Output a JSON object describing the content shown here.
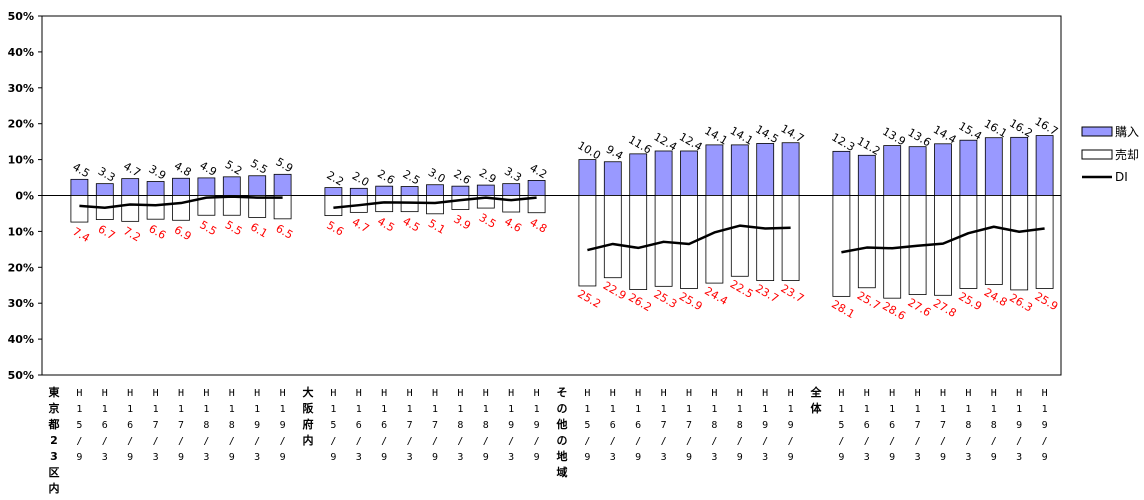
{
  "colors": {
    "buy": "#9999ff",
    "sell": "#ffffff",
    "di": "#000000",
    "sell_label": "#ff0000"
  },
  "legend": {
    "buy": "購入",
    "sell": "売却",
    "di": "DI"
  },
  "chart_data": {
    "type": "bar",
    "ylim": [
      -50,
      50
    ],
    "y_ticks": [
      {
        "value": 50,
        "label": "50%"
      },
      {
        "value": 40,
        "label": "40%"
      },
      {
        "value": 30,
        "label": "30%"
      },
      {
        "value": 20,
        "label": "20%"
      },
      {
        "value": 10,
        "label": "10%"
      },
      {
        "value": 0,
        "label": "0%"
      },
      {
        "value": -10,
        "label": "10%"
      },
      {
        "value": -20,
        "label": "20%"
      },
      {
        "value": -30,
        "label": "30%"
      },
      {
        "value": -40,
        "label": "40%"
      },
      {
        "value": -50,
        "label": "50%"
      }
    ],
    "groups": [
      {
        "name": "東京都23区内",
        "categories": [
          "H15/9",
          "H16/3",
          "H16/9",
          "H17/3",
          "H17/9",
          "H18/3",
          "H18/9",
          "H19/3",
          "H19/9"
        ],
        "buy": [
          4.5,
          3.3,
          4.7,
          3.9,
          4.8,
          4.9,
          5.2,
          5.5,
          5.9
        ],
        "sell": [
          7.4,
          6.7,
          7.2,
          6.6,
          6.9,
          5.5,
          5.5,
          6.1,
          6.5
        ],
        "di": [
          -2.9,
          -3.4,
          -2.5,
          -2.7,
          -2.1,
          -0.6,
          -0.3,
          -0.6,
          -0.6
        ]
      },
      {
        "name": "大阪府内",
        "categories": [
          "H15/9",
          "H16/3",
          "H16/9",
          "H17/3",
          "H17/9",
          "H18/3",
          "H18/9",
          "H19/3",
          "H19/9"
        ],
        "buy": [
          2.2,
          2.0,
          2.6,
          2.5,
          3.0,
          2.6,
          2.9,
          3.3,
          4.2
        ],
        "sell": [
          5.6,
          4.7,
          4.5,
          4.5,
          5.1,
          3.9,
          3.5,
          4.6,
          4.8
        ],
        "di": [
          -3.4,
          -2.7,
          -1.9,
          -2.0,
          -2.1,
          -1.3,
          -0.6,
          -1.3,
          -0.6
        ]
      },
      {
        "name": "その他の地域",
        "categories": [
          "H15/9",
          "H16/3",
          "H16/9",
          "H17/3",
          "H17/9",
          "H18/3",
          "H18/9",
          "H19/3",
          "H19/9"
        ],
        "buy": [
          10.0,
          9.4,
          11.6,
          12.4,
          12.4,
          14.1,
          14.1,
          14.5,
          14.7
        ],
        "sell": [
          25.2,
          22.9,
          26.2,
          25.3,
          25.9,
          24.4,
          22.5,
          23.7,
          23.7
        ],
        "di": [
          -15.2,
          -13.5,
          -14.6,
          -12.9,
          -13.5,
          -10.3,
          -8.4,
          -9.2,
          -9.0
        ]
      },
      {
        "name": "全体",
        "categories": [
          "H15/9",
          "H16/3",
          "H16/9",
          "H17/3",
          "H17/9",
          "H18/3",
          "H18/9",
          "H19/3",
          "H19/9"
        ],
        "buy": [
          12.3,
          11.2,
          13.9,
          13.6,
          14.4,
          15.4,
          16.1,
          16.2,
          16.7
        ],
        "sell": [
          28.1,
          25.7,
          28.6,
          27.6,
          27.8,
          25.9,
          24.8,
          26.3,
          25.9
        ],
        "di": [
          -15.8,
          -14.5,
          -14.7,
          -14.0,
          -13.4,
          -10.5,
          -8.7,
          -10.1,
          -9.2
        ]
      }
    ]
  }
}
